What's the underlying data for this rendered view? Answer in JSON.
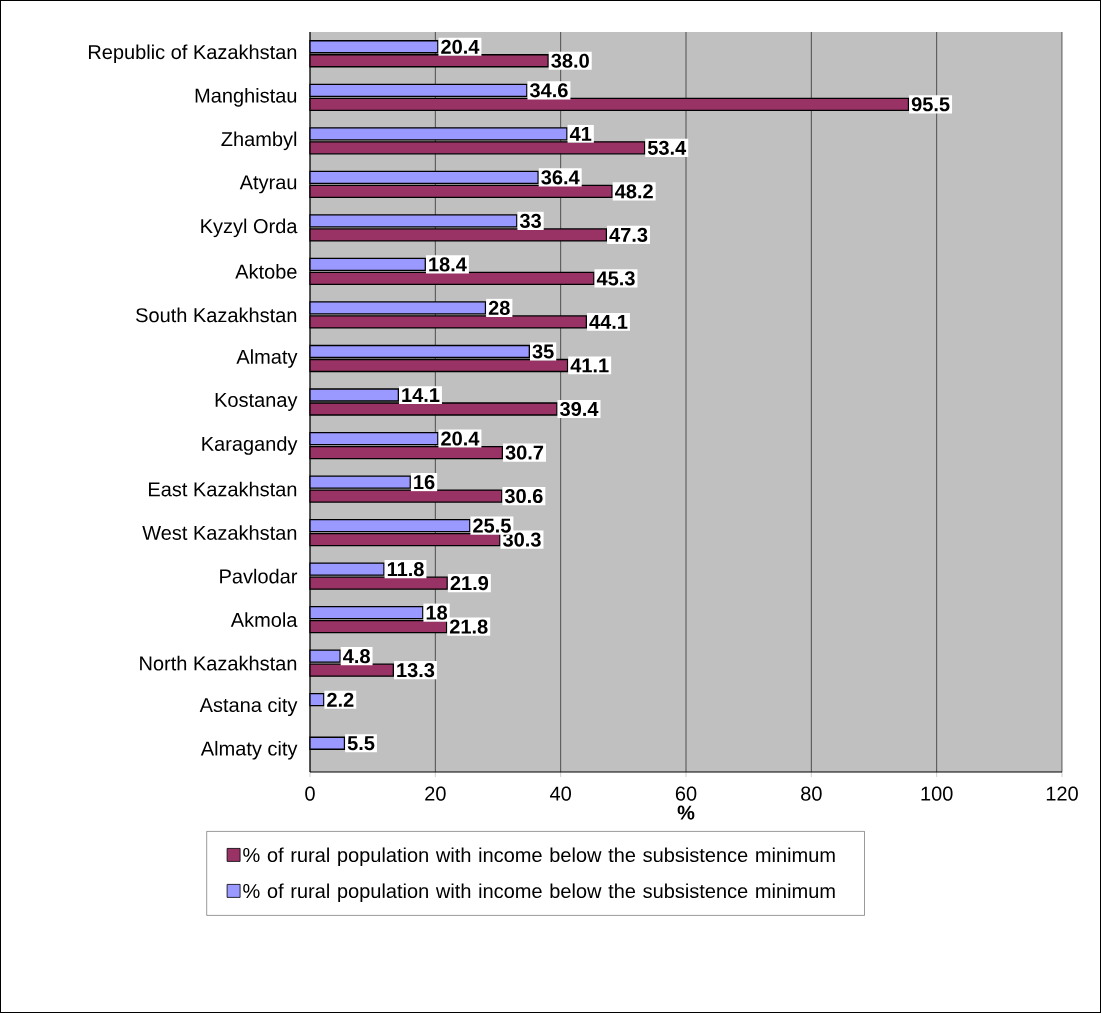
{
  "chart_data": {
    "type": "bar",
    "orientation": "horizontal",
    "xlabel": "%",
    "categories": [
      "Republic of Kazakhstan",
      "Manghistau",
      "Zhambyl",
      "Atyrau",
      "Kyzyl Orda",
      "Aktobe",
      "South Kazakhstan",
      "Almaty",
      "Kostanay",
      "Karagandy",
      "East Kazakhstan",
      "West Kazakhstan",
      "Pavlodar",
      "Akmola",
      "North Kazakhstan",
      "Astana city",
      "Almaty city"
    ],
    "series": [
      {
        "name": "% of rural population with income below the subsistence minimum",
        "color": "#993366",
        "values": [
          38.0,
          95.5,
          53.4,
          48.2,
          47.3,
          45.3,
          44.1,
          41.1,
          39.4,
          30.7,
          30.6,
          30.3,
          21.9,
          21.8,
          13.3,
          null,
          null
        ],
        "value_labels": [
          "38.0",
          "95.5",
          "53.4",
          "48.2",
          "47.3",
          "45.3",
          "44.1",
          "41.1",
          "39.4",
          "30.7",
          "30.6",
          "30.3",
          "21.9",
          "21.8",
          "13.3",
          null,
          null
        ]
      },
      {
        "name": "% of rural population with income below the subsistence minimum",
        "color": "#9999ff",
        "values": [
          20.4,
          34.6,
          41,
          36.4,
          33,
          18.4,
          28,
          35,
          14.1,
          20.4,
          16,
          25.5,
          11.8,
          18,
          4.8,
          2.2,
          5.5
        ],
        "value_labels": [
          "20.4",
          "34.6",
          "41",
          "36.4",
          "33",
          "18.4",
          "28",
          "35",
          "14.1",
          "20.4",
          "16",
          "25.5",
          "11.8",
          "18",
          "4.8",
          "2.2",
          "5.5"
        ]
      }
    ],
    "xlim": [
      0,
      120
    ],
    "xticks": [
      0,
      20,
      40,
      60,
      80,
      100,
      120
    ],
    "grid": "x",
    "legend": "bottom"
  }
}
